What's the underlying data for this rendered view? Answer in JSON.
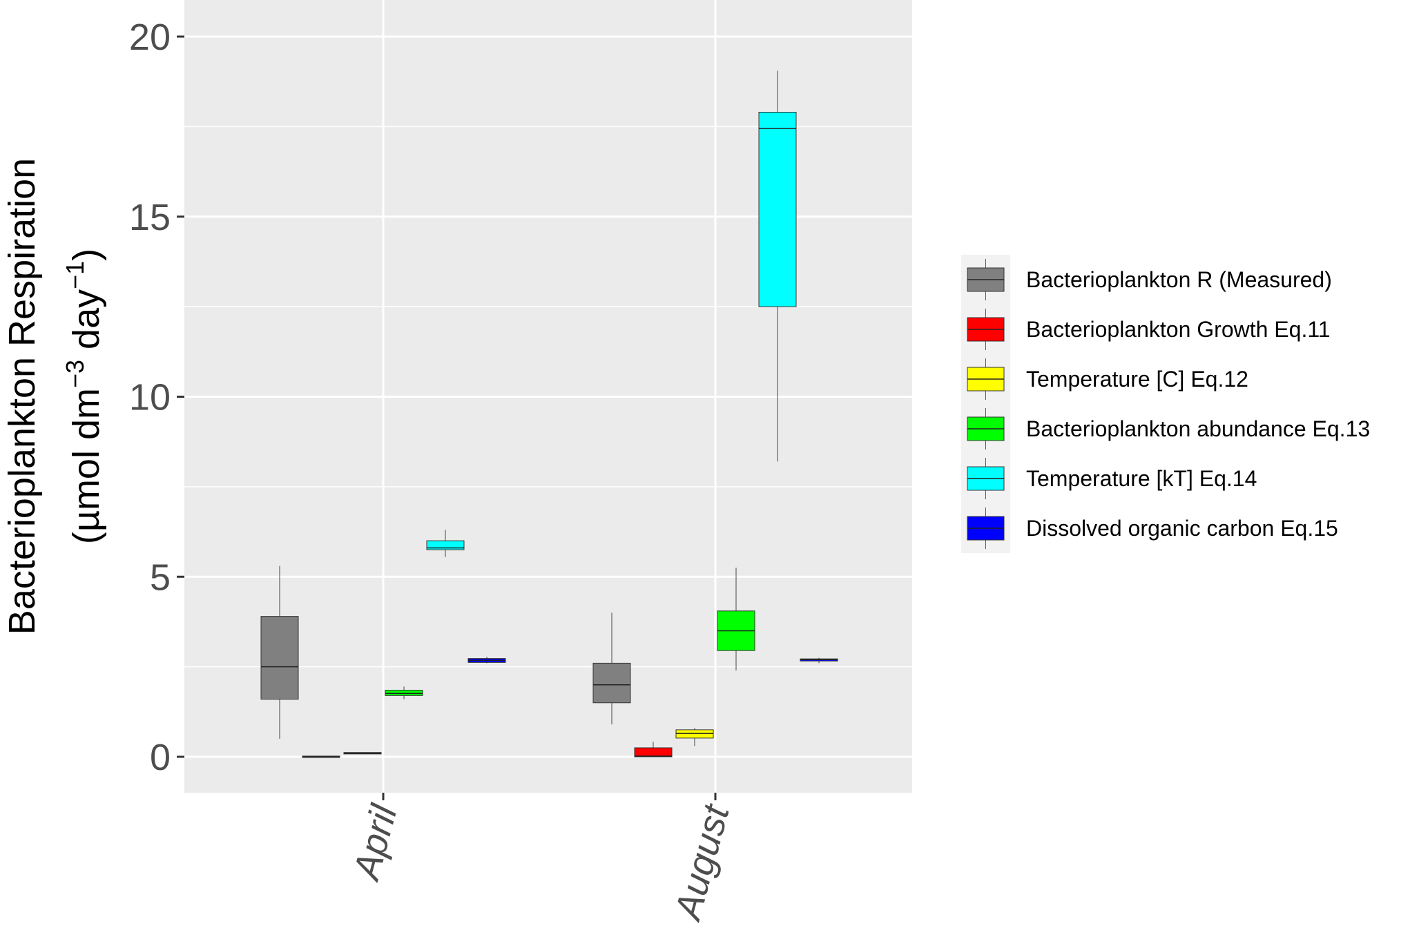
{
  "chart_data": {
    "type": "boxplot",
    "ylabel_line1": "Bacterioplankton Respiration",
    "ylabel_line2_parts": [
      "(µmol dm",
      "−3",
      " day",
      "−1",
      ")"
    ],
    "ylim": [
      -0.8,
      21.0
    ],
    "yticks": [
      0,
      5,
      10,
      15,
      20
    ],
    "ytick_labels": [
      "0",
      "5",
      "10",
      "15",
      "20"
    ],
    "categories": [
      "April",
      "August"
    ],
    "grid": true,
    "legend_position": "right",
    "series": [
      {
        "name": "Bacterioplankton R (Measured)",
        "color": "#808080",
        "boxes": [
          {
            "min": 0.5,
            "q1": 1.6,
            "median": 2.5,
            "q3": 3.9,
            "max": 5.3
          },
          {
            "min": 0.9,
            "q1": 1.5,
            "median": 2.0,
            "q3": 2.6,
            "max": 4.0
          }
        ]
      },
      {
        "name": "Bacterioplankton Growth Eq.11",
        "color": "#ff0000",
        "boxes": [
          {
            "min": 0.0,
            "q1": 0.0,
            "median": 0.0,
            "q3": 0.02,
            "max": 0.02
          },
          {
            "min": 0.0,
            "q1": 0.0,
            "median": 0.02,
            "q3": 0.25,
            "max": 0.42
          }
        ]
      },
      {
        "name": "Temperature [C] Eq.12",
        "color": "#ffff00",
        "boxes": [
          {
            "min": 0.07,
            "q1": 0.08,
            "median": 0.1,
            "q3": 0.12,
            "max": 0.13
          },
          {
            "min": 0.3,
            "q1": 0.52,
            "median": 0.65,
            "q3": 0.75,
            "max": 0.8
          }
        ]
      },
      {
        "name": "Bacterioplankton abundance Eq.13",
        "color": "#00ff00",
        "boxes": [
          {
            "min": 1.6,
            "q1": 1.7,
            "median": 1.76,
            "q3": 1.85,
            "max": 1.95
          },
          {
            "min": 2.4,
            "q1": 2.95,
            "median": 3.5,
            "q3": 4.05,
            "max": 5.25
          }
        ]
      },
      {
        "name": "Temperature [kT] Eq.14",
        "color": "#00ffff",
        "boxes": [
          {
            "min": 5.55,
            "q1": 5.75,
            "median": 5.8,
            "q3": 6.0,
            "max": 6.3
          },
          {
            "min": 8.2,
            "q1": 12.5,
            "median": 17.45,
            "q3": 17.9,
            "max": 19.05
          }
        ]
      },
      {
        "name": "Dissolved organic carbon Eq.15",
        "color": "#0000ff",
        "boxes": [
          {
            "min": 2.6,
            "q1": 2.62,
            "median": 2.68,
            "q3": 2.73,
            "max": 2.78
          },
          {
            "min": 2.6,
            "q1": 2.66,
            "median": 2.7,
            "q3": 2.72,
            "max": 2.75
          }
        ]
      }
    ]
  }
}
